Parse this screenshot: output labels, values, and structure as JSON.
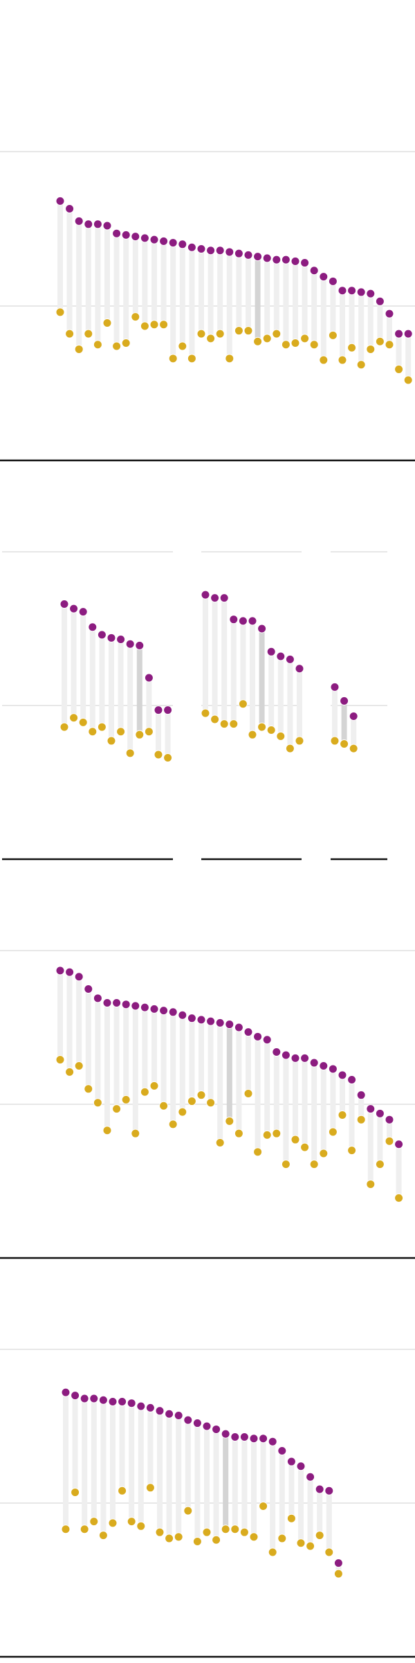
{
  "chart_data": [
    {
      "type": "dot",
      "ylim": [
        -100,
        100
      ],
      "yticks": [
        0,
        100
      ],
      "grid": true,
      "highlight": 21,
      "series": [
        {
          "color": "#d9ab1e",
          "values": [
            -4,
            -18,
            -28,
            -18,
            -25,
            -11,
            -26,
            -24,
            -7,
            -13,
            -12,
            -12,
            -34,
            -26,
            -34,
            -18,
            -21,
            -18,
            -34,
            -16,
            -16,
            -23,
            -21,
            -18,
            -25,
            -24,
            -21,
            -25,
            -35,
            -19,
            -35,
            -27,
            -38,
            -28,
            -23,
            -25,
            -41,
            -48
          ]
        },
        {
          "color": "#8c1c80",
          "values": [
            68,
            63,
            55,
            53,
            53,
            52,
            47,
            46,
            45,
            44,
            43,
            42,
            41,
            40,
            38,
            37,
            36,
            36,
            35,
            34,
            33,
            32,
            31,
            30,
            30,
            29,
            28,
            23,
            19,
            16,
            10,
            10,
            9,
            8,
            3,
            -5,
            -18,
            -18
          ]
        }
      ]
    },
    {
      "type": "dot",
      "ylim": [
        -100,
        100
      ],
      "yticks": [
        0,
        100
      ],
      "grid": true,
      "highlight": 8,
      "series": [
        {
          "color": "#d9ab1e",
          "values": [
            -14,
            -8,
            -11,
            -17,
            -14,
            -23,
            -17,
            -31,
            -19,
            -17,
            -32,
            -34
          ]
        },
        {
          "color": "#8c1c80",
          "values": [
            66,
            63,
            61,
            51,
            46,
            44,
            43,
            40,
            39,
            18,
            -3,
            -3
          ]
        }
      ]
    },
    {
      "type": "dot",
      "ylim": [
        -100,
        100
      ],
      "yticks": [
        0,
        100
      ],
      "grid": true,
      "highlight": 6,
      "series": [
        {
          "color": "#d9ab1e",
          "values": [
            -5,
            -9,
            -12,
            -12,
            1,
            -19,
            -14,
            -16,
            -20,
            -28,
            -23
          ]
        },
        {
          "color": "#8c1c80",
          "values": [
            72,
            70,
            70,
            56,
            55,
            55,
            50,
            35,
            32,
            30,
            24
          ]
        }
      ]
    },
    {
      "type": "dot",
      "ylim": [
        -100,
        100
      ],
      "yticks": [
        0,
        100
      ],
      "grid": true,
      "highlight": 1,
      "series": [
        {
          "color": "#d9ab1e",
          "values": [
            -23,
            -25,
            -28
          ]
        },
        {
          "color": "#8c1c80",
          "values": [
            12,
            3,
            -7
          ]
        }
      ]
    },
    {
      "type": "dot",
      "ylim": [
        -100,
        100
      ],
      "yticks": [
        0,
        100
      ],
      "grid": true,
      "highlight": 18,
      "series": [
        {
          "color": "#d9ab1e",
          "values": [
            29,
            21,
            25,
            10,
            1,
            -17,
            -3,
            3,
            -19,
            8,
            12,
            -1,
            -13,
            -5,
            2,
            6,
            1,
            -25,
            -11,
            -19,
            7,
            -31,
            -20,
            -19,
            -39,
            -23,
            -28,
            -39,
            -32,
            -18,
            -7,
            -30,
            -10,
            -52,
            -39,
            -24,
            -61
          ]
        },
        {
          "color": "#8c1c80",
          "values": [
            87,
            86,
            83,
            75,
            69,
            66,
            66,
            65,
            64,
            63,
            62,
            61,
            60,
            58,
            56,
            55,
            54,
            53,
            52,
            50,
            47,
            44,
            42,
            34,
            32,
            30,
            30,
            27,
            25,
            23,
            19,
            16,
            6,
            -3,
            -6,
            -10,
            -26
          ]
        }
      ]
    },
    {
      "type": "dot",
      "ylim": [
        -100,
        100
      ],
      "yticks": [
        0,
        100
      ],
      "grid": true,
      "highlight": 17,
      "series": [
        {
          "color": "#d9ab1e",
          "values": [
            -17,
            7,
            -17,
            -12,
            -21,
            -13,
            8,
            -12,
            -15,
            10,
            -19,
            -23,
            -22,
            -5,
            -25,
            -19,
            -24,
            -17,
            -17,
            -19,
            -22,
            -2,
            -32,
            -23,
            -10,
            -26,
            -28,
            -21,
            -32,
            -46
          ]
        },
        {
          "color": "#8c1c80",
          "values": [
            72,
            70,
            68,
            68,
            67,
            66,
            66,
            65,
            63,
            62,
            60,
            58,
            57,
            54,
            52,
            50,
            48,
            45,
            43,
            43,
            42,
            42,
            40,
            34,
            27,
            24,
            17,
            9,
            8,
            -39
          ]
        }
      ]
    }
  ]
}
